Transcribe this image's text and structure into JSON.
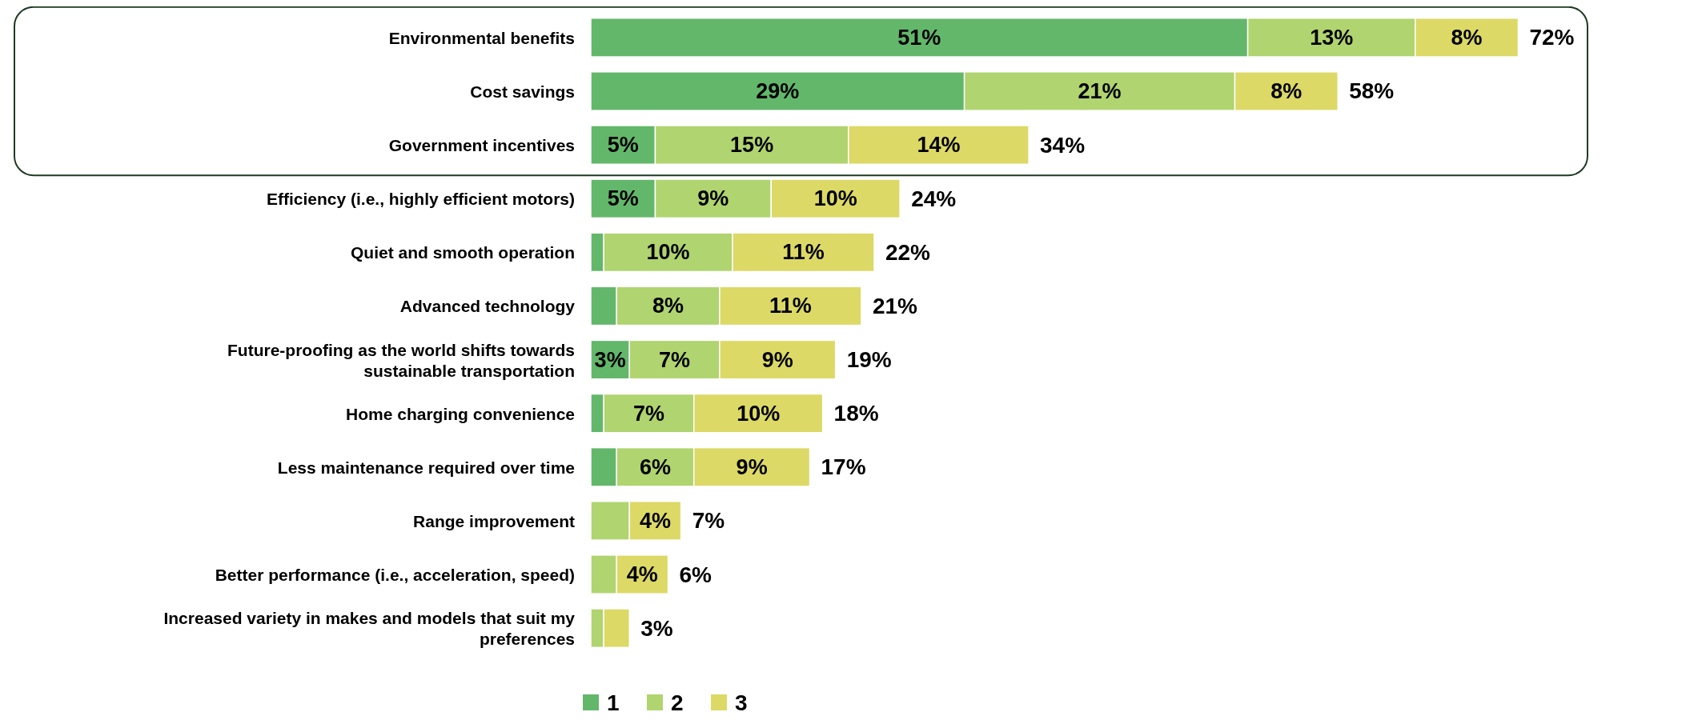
{
  "chart_data": {
    "type": "bar",
    "orientation": "horizontal",
    "stacked": true,
    "categories": [
      "Environmental benefits",
      "Cost savings",
      "Government incentives",
      "Efficiency (i.e., highly efficient motors)",
      "Quiet and smooth operation",
      "Advanced technology",
      "Future-proofing as the world shifts towards sustainable transportation",
      "Home charging convenience",
      "Less maintenance required over time",
      "Range improvement",
      "Better performance (i.e., acceleration, speed)",
      "Increased variety in makes and models that suit my preferences"
    ],
    "series": [
      {
        "name": "1",
        "color": "#63b76a",
        "values": [
          51,
          29,
          5,
          5,
          1,
          2,
          3,
          1,
          2,
          0,
          0,
          0
        ],
        "value_labels": [
          "51%",
          "29%",
          "5%",
          "5%",
          null,
          null,
          "3%",
          null,
          null,
          null,
          null,
          null
        ]
      },
      {
        "name": "2",
        "color": "#b0d46f",
        "values": [
          13,
          21,
          15,
          9,
          10,
          8,
          7,
          7,
          6,
          3,
          2,
          1
        ],
        "value_labels": [
          "13%",
          "21%",
          "15%",
          "9%",
          "10%",
          "8%",
          "7%",
          "7%",
          "6%",
          null,
          null,
          null
        ]
      },
      {
        "name": "3",
        "color": "#dcd966",
        "values": [
          8,
          8,
          14,
          10,
          11,
          11,
          9,
          10,
          9,
          4,
          4,
          2
        ],
        "value_labels": [
          "8%",
          "8%",
          "14%",
          "10%",
          "11%",
          "11%",
          "9%",
          "10%",
          "9%",
          "4%",
          "4%",
          null
        ]
      }
    ],
    "totals": [
      "72%",
      "58%",
      "34%",
      "24%",
      "22%",
      "21%",
      "19%",
      "18%",
      "17%",
      "7%",
      "6%",
      "3%"
    ],
    "legend": "bottom"
  }
}
